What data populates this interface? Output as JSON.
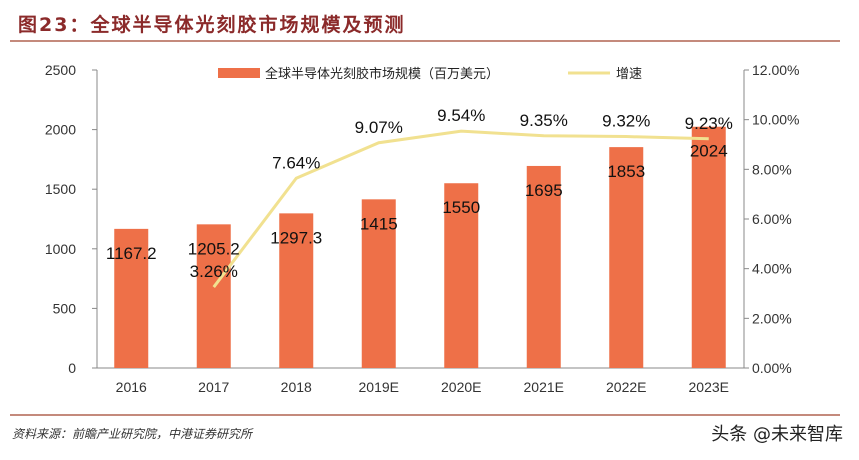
{
  "title": "图23：全球半导体光刻胶市场规模及预测",
  "source": "资料来源：前瞻产业研究院，中港证券研究所",
  "watermark": "头条 @未来智库",
  "chart_data": {
    "type": "bar+line",
    "categories": [
      "2016",
      "2017",
      "2018",
      "2019E",
      "2020E",
      "2021E",
      "2022E",
      "2023E"
    ],
    "series": [
      {
        "name": "全球半导体光刻胶市场规模（百万美元）",
        "type": "bar",
        "axis": "left",
        "color": "#ee7048",
        "values": [
          1167.2,
          1205.2,
          1297.3,
          1415,
          1550,
          1695,
          1853,
          2024
        ],
        "labels": [
          "1167.2",
          "1205.2",
          "1297.3",
          "1415",
          "1550",
          "1695",
          "1853",
          "2024"
        ]
      },
      {
        "name": "增速",
        "type": "line",
        "axis": "right",
        "color": "#f1e190",
        "values": [
          null,
          3.26,
          7.64,
          9.07,
          9.54,
          9.35,
          9.32,
          9.23
        ],
        "labels": [
          "",
          "3.26%",
          "7.64%",
          "9.07%",
          "9.54%",
          "9.35%",
          "9.32%",
          "9.23%"
        ]
      }
    ],
    "y_left": {
      "lim": [
        0,
        2500
      ],
      "ticks": [
        "0",
        "500",
        "1000",
        "1500",
        "2000",
        "2500"
      ]
    },
    "y_right": {
      "lim": [
        0,
        12
      ],
      "ticks": [
        "0.00%",
        "2.00%",
        "4.00%",
        "6.00%",
        "8.00%",
        "10.00%",
        "12.00%"
      ]
    },
    "legend": "top",
    "grid": false
  }
}
